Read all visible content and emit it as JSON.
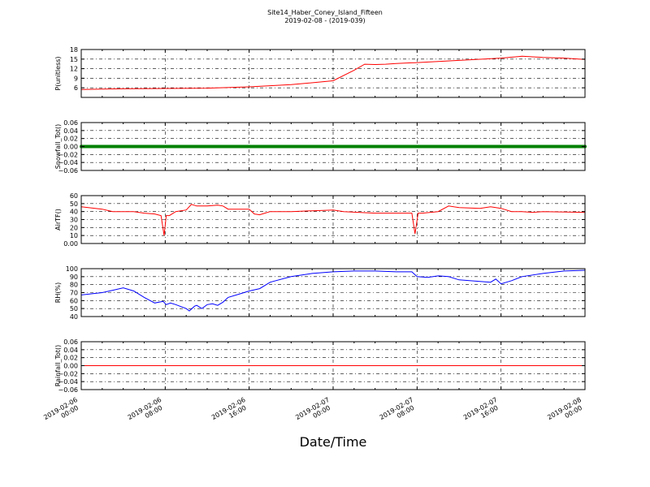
{
  "figure": {
    "title_line1": "Site14_Haber_Coney_Island_Fifteen",
    "title_line2": "2019-02-08 - (2019-039)",
    "xlabel": "Date/Time",
    "x_ticks": [
      "2019-02-06\n00:00",
      "2019-02-06\n08:00",
      "2019-02-06\n16:00",
      "2019-02-07\n00:00",
      "2019-02-07\n08:00",
      "2019-02-07\n16:00",
      "2019-02-08\n00:00"
    ]
  },
  "chart_data": [
    {
      "type": "line",
      "ylabel": "P(unitless)",
      "ylim": [
        3,
        18
      ],
      "yticks": [
        6,
        9,
        12,
        15,
        18
      ],
      "color": "#ff0000",
      "grid": true,
      "x_hours": [
        0,
        4,
        8,
        12,
        16,
        20,
        24,
        26,
        27,
        28,
        29,
        30,
        32,
        36,
        40,
        42,
        44,
        46,
        48
      ],
      "values": [
        5.5,
        5.7,
        5.8,
        5.9,
        6.3,
        7.0,
        8.2,
        11.5,
        13.4,
        13.3,
        13.4,
        13.6,
        13.9,
        14.6,
        15.3,
        15.9,
        15.5,
        15.3,
        14.9
      ]
    },
    {
      "type": "line",
      "ylabel": "Snowfall_Tot()",
      "ylim": [
        -0.06,
        0.06
      ],
      "yticks": [
        -0.06,
        -0.04,
        -0.02,
        0.0,
        0.02,
        0.04,
        0.06
      ],
      "color": "#008000",
      "grid": true,
      "x_hours": [
        0,
        48
      ],
      "values": [
        0,
        0
      ]
    },
    {
      "type": "line",
      "ylabel": "AirTF()",
      "ylim": [
        0,
        60
      ],
      "yticks": [
        0,
        10,
        20,
        30,
        40,
        50,
        60
      ],
      "color": "#ff0000",
      "grid": true,
      "x_hours": [
        0,
        2,
        3,
        5,
        6,
        7,
        7.6,
        7.9,
        8.1,
        8.4,
        9,
        10,
        10.5,
        11,
        12,
        13,
        13.5,
        14,
        16,
        16.5,
        17,
        17.5,
        18,
        20,
        24,
        25,
        28,
        30,
        31.5,
        31.8,
        32.1,
        32.5,
        34,
        35,
        36,
        38,
        39,
        40,
        41,
        42,
        43,
        44,
        48
      ],
      "values": [
        46,
        43,
        40,
        40,
        38,
        37,
        35,
        10,
        35,
        35,
        40,
        42,
        49,
        47,
        47,
        48,
        47,
        43,
        43,
        37,
        36,
        38,
        40,
        40,
        42,
        40,
        38,
        38,
        38,
        12,
        38,
        38,
        40,
        47,
        45,
        44,
        46,
        44,
        40,
        40,
        39,
        40,
        39
      ]
    },
    {
      "type": "line",
      "ylabel": "RH(%)",
      "ylim": [
        40,
        100
      ],
      "yticks": [
        40,
        50,
        60,
        70,
        80,
        90,
        100
      ],
      "color": "#0000ff",
      "grid": true,
      "x_hours": [
        0,
        2,
        3,
        4,
        5,
        6,
        7,
        7.8,
        8.1,
        8.5,
        9,
        10,
        10.3,
        10.8,
        11,
        11.5,
        12,
        12.5,
        13,
        13.5,
        14,
        15,
        16,
        17,
        18,
        20,
        22,
        24,
        26,
        28,
        30,
        31.5,
        32,
        33,
        34,
        35,
        36,
        37,
        38,
        39,
        39.5,
        40,
        41,
        42,
        44,
        46,
        48
      ],
      "values": [
        67,
        70,
        73,
        76,
        72,
        64,
        57,
        59,
        55,
        57,
        55,
        50,
        47,
        53,
        54,
        50,
        55,
        56,
        54,
        58,
        64,
        68,
        72,
        75,
        83,
        90,
        94,
        96,
        97,
        97,
        96,
        96,
        90,
        89,
        91,
        90,
        86,
        85,
        84,
        83,
        87,
        81,
        85,
        90,
        94,
        97,
        98
      ]
    },
    {
      "type": "line",
      "ylabel": "Rainfall_Tot()",
      "ylim": [
        -0.06,
        0.06
      ],
      "yticks": [
        -0.06,
        -0.04,
        -0.02,
        0.0,
        0.02,
        0.04,
        0.06
      ],
      "color": "#ff0000",
      "grid": true,
      "x_hours": [
        0,
        48
      ],
      "values": [
        0,
        0
      ]
    }
  ]
}
